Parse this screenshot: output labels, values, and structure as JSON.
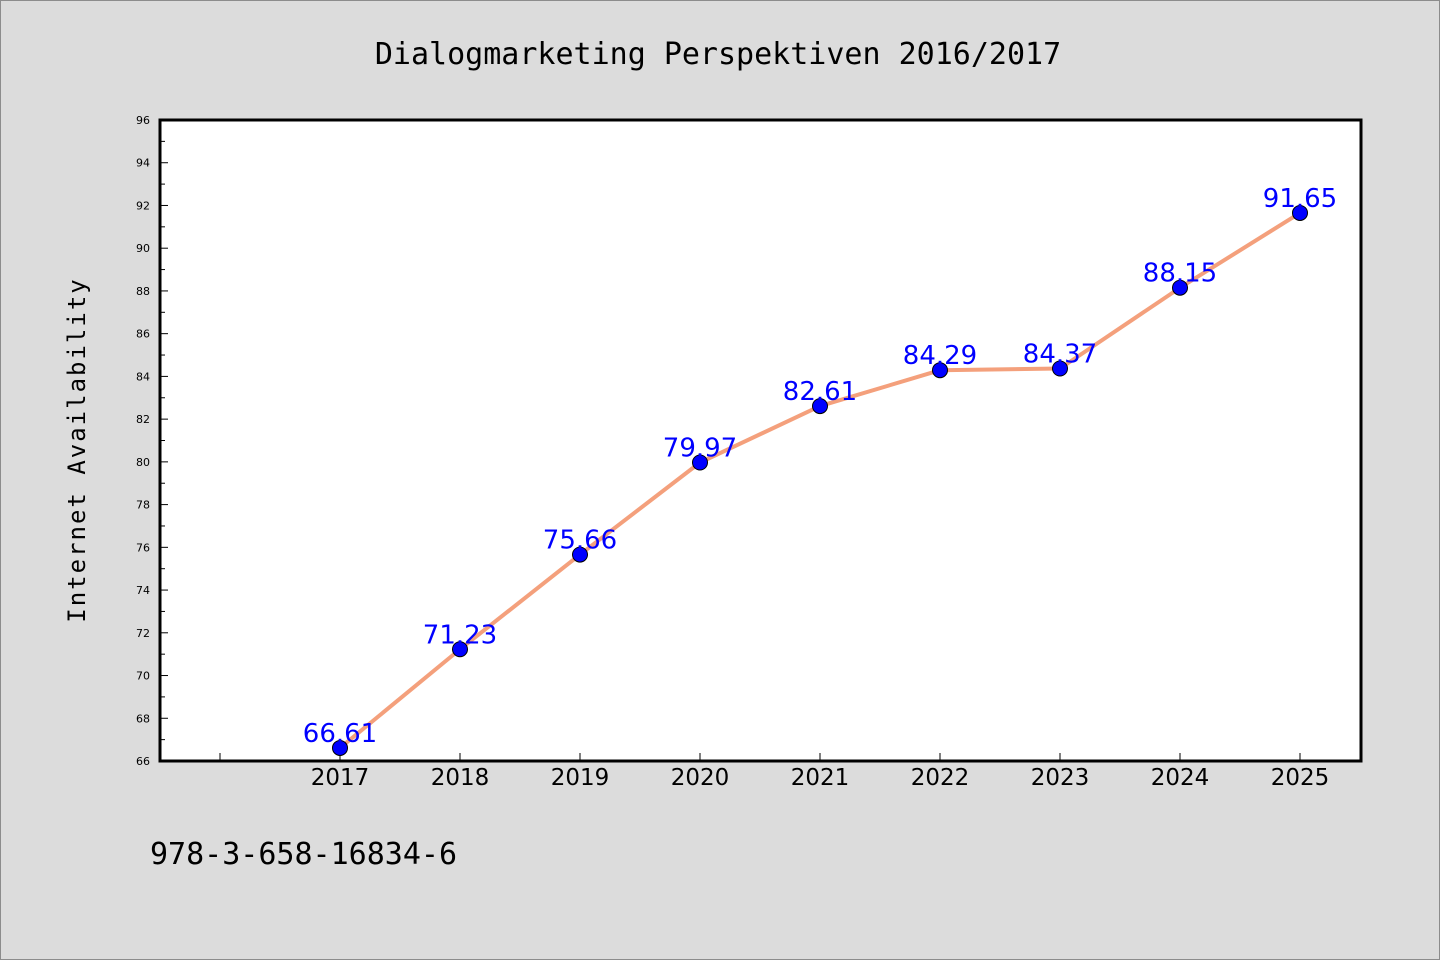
{
  "chart_data": {
    "type": "line",
    "title": "Dialogmarketing Perspektiven 2016/2017",
    "xlabel": "",
    "ylabel": "Internet Availability",
    "categories": [
      "2017",
      "2018",
      "2019",
      "2020",
      "2021",
      "2022",
      "2023",
      "2024",
      "2025"
    ],
    "series": [
      {
        "values": [
          66.61,
          71.23,
          75.66,
          79.97,
          82.61,
          84.29,
          84.37,
          88.15,
          91.65
        ],
        "data_labels": [
          "66.61",
          "71.23",
          "75.66",
          "79.97",
          "82.61",
          "84.29",
          "84.37",
          "88.15",
          "91.65"
        ]
      }
    ],
    "ylim": [
      66,
      96
    ],
    "y_ticks": [
      "66",
      "68",
      "70",
      "72",
      "74",
      "76",
      "78",
      "80",
      "82",
      "84",
      "86",
      "88",
      "90",
      "92",
      "94",
      "96"
    ],
    "grid": false,
    "legend": "none",
    "colors": {
      "line": "#f4a07c",
      "marker": "#0000ff",
      "label": "#0000ff",
      "background": "#dcdcdc",
      "plot_area": "#ffffff"
    }
  },
  "footer": {
    "isbn": "978-3-658-16834-6"
  }
}
